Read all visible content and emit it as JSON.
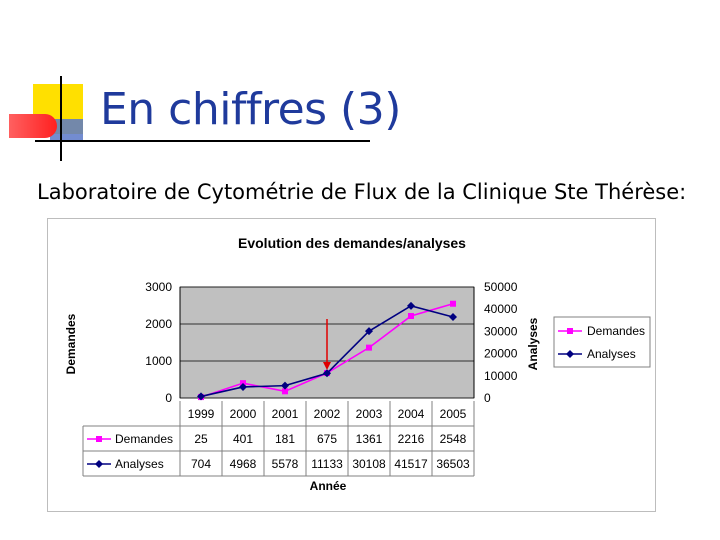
{
  "slide": {
    "title": "En chiffres (3)",
    "subtitle": "Laboratoire de Cytométrie de Flux de la Clinique Ste Thérèse:"
  },
  "colors": {
    "title": "#1f3a9c",
    "plot_bg": "#c0c0c0",
    "demandes": "#ff00ff",
    "analyses": "#000080",
    "arrow": "#e00000",
    "deco_yellow": "#ffe000",
    "deco_red": "#ff4040",
    "deco_blue": "#5a78c8"
  },
  "chart_data": {
    "type": "line",
    "title": "Evolution des demandes/analyses",
    "xlabel": "Année",
    "ylabel": "Demandes",
    "y2label": "Analyses",
    "categories": [
      "1999",
      "2000",
      "2001",
      "2002",
      "2003",
      "2004",
      "2005"
    ],
    "ylim": [
      0,
      3000
    ],
    "y2lim": [
      0,
      50000
    ],
    "yticks": [
      "0",
      "1000",
      "2000",
      "3000"
    ],
    "y2ticks": [
      "0",
      "10000",
      "20000",
      "30000",
      "40000",
      "50000"
    ],
    "grid": true,
    "legend_position": "right",
    "series": [
      {
        "name": "Demandes",
        "axis": "left",
        "marker": "square",
        "color": "#ff00ff",
        "values": [
          25,
          401,
          181,
          675,
          1361,
          2216,
          2548
        ]
      },
      {
        "name": "Analyses",
        "axis": "right",
        "marker": "diamond",
        "color": "#000080",
        "values": [
          704,
          4968,
          5578,
          11133,
          30108,
          41517,
          36503
        ]
      }
    ],
    "table": {
      "rows": [
        {
          "label": "Demandes",
          "cells": [
            "25",
            "401",
            "181",
            "675",
            "1361",
            "2216",
            "2548"
          ]
        },
        {
          "label": "Analyses",
          "cells": [
            "704",
            "4968",
            "5578",
            "11133",
            "30108",
            "41517",
            "36503"
          ]
        }
      ]
    },
    "annotation": {
      "type": "arrow",
      "category": "2002"
    }
  }
}
